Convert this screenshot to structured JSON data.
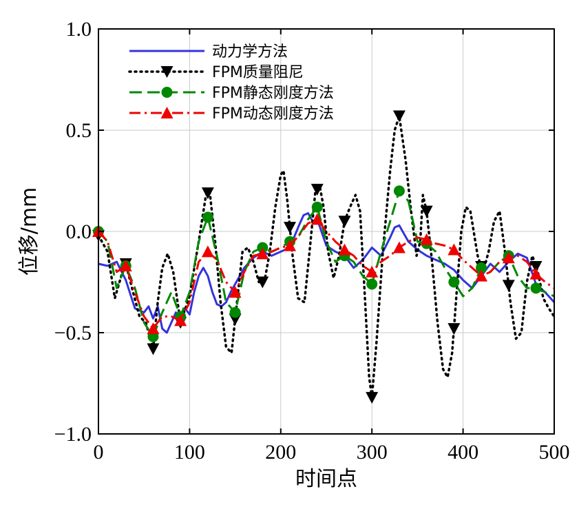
{
  "chart_data": {
    "type": "line",
    "xlabel": "时间点",
    "ylabel": "位移/mm",
    "xlim": [
      0,
      500
    ],
    "ylim": [
      -1.0,
      1.0
    ],
    "x_ticks": [
      0,
      100,
      200,
      300,
      400,
      500
    ],
    "x_tick_labels": [
      "0",
      "100",
      "200",
      "300",
      "400",
      "500"
    ],
    "y_ticks": [
      1.0,
      0.5,
      0.0,
      -0.5,
      -1.0
    ],
    "y_tick_labels": [
      "1.0",
      "0.5",
      "0.0",
      "−0.5",
      "−1.0"
    ],
    "grid": true,
    "legend_position": "top-left",
    "series": [
      {
        "name": "动力学方法",
        "color": "#3333dd",
        "style": "solid",
        "marker": "none",
        "x": [
          0,
          10,
          20,
          30,
          40,
          50,
          55,
          60,
          65,
          70,
          75,
          80,
          85,
          90,
          95,
          100,
          105,
          110,
          115,
          120,
          125,
          130,
          135,
          140,
          145,
          150,
          160,
          170,
          180,
          190,
          200,
          210,
          220,
          225,
          230,
          235,
          240,
          250,
          260,
          270,
          280,
          290,
          300,
          310,
          320,
          325,
          330,
          340,
          350,
          360,
          370,
          380,
          390,
          400,
          410,
          420,
          430,
          440,
          450,
          460,
          470,
          480,
          490,
          500
        ],
        "y": [
          -0.16,
          -0.17,
          -0.15,
          -0.24,
          -0.38,
          -0.4,
          -0.37,
          -0.43,
          -0.37,
          -0.48,
          -0.5,
          -0.45,
          -0.4,
          -0.45,
          -0.38,
          -0.41,
          -0.3,
          -0.22,
          -0.18,
          -0.22,
          -0.3,
          -0.36,
          -0.37,
          -0.35,
          -0.3,
          -0.26,
          -0.18,
          -0.13,
          -0.1,
          -0.12,
          -0.1,
          -0.08,
          0.03,
          0.08,
          0.09,
          0.05,
          0.06,
          -0.07,
          -0.1,
          -0.12,
          -0.18,
          -0.14,
          -0.08,
          -0.12,
          -0.03,
          0.02,
          0.03,
          -0.05,
          -0.09,
          -0.12,
          -0.14,
          -0.16,
          -0.19,
          -0.24,
          -0.28,
          -0.22,
          -0.16,
          -0.2,
          -0.15,
          -0.11,
          -0.13,
          -0.26,
          -0.3,
          -0.35
        ]
      },
      {
        "name": "FPM质量阻尼",
        "color": "#000000",
        "style": "dotted",
        "marker": "triangle-down",
        "marker_x": [
          0,
          30,
          60,
          90,
          120,
          150,
          180,
          210,
          240,
          270,
          300,
          330,
          360,
          390,
          420,
          450,
          480
        ],
        "x": [
          0,
          10,
          18,
          25,
          30,
          38,
          45,
          52,
          60,
          65,
          70,
          76,
          82,
          90,
          100,
          110,
          118,
          122,
          128,
          134,
          140,
          146,
          152,
          158,
          164,
          170,
          176,
          182,
          188,
          194,
          200,
          203,
          207,
          213,
          219,
          226,
          232,
          238,
          243,
          247,
          252,
          258,
          264,
          270,
          276,
          282,
          287,
          292,
          297,
          300,
          305,
          312,
          320,
          325,
          330,
          337,
          343,
          349,
          353,
          356,
          360,
          366,
          372,
          378,
          383,
          388,
          393,
          398,
          403,
          408,
          416,
          422,
          428,
          434,
          440,
          446,
          452,
          458,
          464,
          470,
          476,
          482,
          488,
          494,
          500
        ],
        "y": [
          -0.02,
          -0.1,
          -0.33,
          -0.22,
          -0.16,
          -0.3,
          -0.42,
          -0.45,
          -0.58,
          -0.35,
          -0.18,
          -0.11,
          -0.2,
          -0.45,
          -0.32,
          -0.05,
          0.18,
          0.2,
          -0.05,
          -0.35,
          -0.57,
          -0.6,
          -0.35,
          -0.1,
          -0.08,
          -0.15,
          -0.25,
          -0.25,
          -0.1,
          0.12,
          0.28,
          0.3,
          0.16,
          -0.12,
          -0.33,
          -0.35,
          -0.08,
          0.2,
          0.22,
          0.12,
          -0.1,
          -0.23,
          -0.12,
          0.05,
          0.12,
          0.18,
          0.1,
          -0.3,
          -0.72,
          -0.82,
          -0.55,
          -0.1,
          0.3,
          0.5,
          0.57,
          0.35,
          0.1,
          -0.12,
          -0.05,
          0.18,
          0.1,
          -0.15,
          -0.45,
          -0.68,
          -0.72,
          -0.6,
          -0.3,
          0.0,
          0.12,
          0.1,
          -0.12,
          -0.2,
          -0.1,
          0.05,
          0.1,
          -0.1,
          -0.35,
          -0.53,
          -0.5,
          -0.25,
          -0.12,
          -0.2,
          -0.33,
          -0.38,
          -0.42
        ]
      },
      {
        "name": "FPM静态刚度方法",
        "color": "#008800",
        "style": "dashed",
        "marker": "circle",
        "marker_x": [
          0,
          30,
          60,
          90,
          120,
          150,
          180,
          210,
          240,
          270,
          300,
          330,
          360,
          390,
          420,
          450,
          480
        ],
        "x": [
          0,
          10,
          20,
          30,
          40,
          50,
          60,
          70,
          80,
          90,
          100,
          110,
          120,
          130,
          140,
          150,
          160,
          170,
          180,
          190,
          200,
          210,
          220,
          230,
          240,
          250,
          260,
          270,
          280,
          290,
          300,
          310,
          320,
          330,
          340,
          350,
          360,
          370,
          380,
          390,
          400,
          410,
          420,
          430,
          440,
          450,
          460,
          470,
          480,
          490,
          500
        ],
        "y": [
          0.0,
          -0.05,
          -0.28,
          -0.17,
          -0.28,
          -0.45,
          -0.52,
          -0.4,
          -0.3,
          -0.42,
          -0.3,
          -0.05,
          0.07,
          -0.12,
          -0.35,
          -0.4,
          -0.2,
          -0.1,
          -0.08,
          -0.1,
          -0.08,
          -0.05,
          -0.02,
          0.06,
          0.12,
          -0.05,
          -0.15,
          -0.12,
          -0.15,
          -0.22,
          -0.26,
          -0.1,
          0.05,
          0.2,
          0.15,
          -0.05,
          -0.06,
          -0.1,
          -0.18,
          -0.25,
          -0.32,
          -0.28,
          -0.18,
          -0.2,
          -0.15,
          -0.12,
          -0.22,
          -0.28,
          -0.28,
          -0.3,
          -0.32
        ]
      },
      {
        "name": "FPM动态刚度方法",
        "color": "#ee0000",
        "style": "dashdot",
        "marker": "triangle-up",
        "marker_x": [
          0,
          30,
          60,
          90,
          120,
          150,
          180,
          210,
          240,
          270,
          300,
          330,
          360,
          390,
          420,
          450,
          480
        ],
        "x": [
          0,
          10,
          20,
          30,
          40,
          50,
          60,
          70,
          80,
          90,
          100,
          110,
          120,
          130,
          140,
          150,
          160,
          170,
          180,
          190,
          200,
          210,
          220,
          230,
          240,
          250,
          260,
          270,
          280,
          290,
          300,
          310,
          320,
          330,
          340,
          350,
          360,
          370,
          380,
          390,
          400,
          410,
          420,
          430,
          440,
          450,
          460,
          470,
          480,
          490,
          500
        ],
        "y": [
          0.0,
          -0.05,
          -0.2,
          -0.17,
          -0.3,
          -0.42,
          -0.48,
          -0.42,
          -0.42,
          -0.44,
          -0.35,
          -0.15,
          -0.1,
          -0.14,
          -0.25,
          -0.3,
          -0.2,
          -0.12,
          -0.11,
          -0.1,
          -0.08,
          -0.07,
          -0.02,
          0.04,
          0.06,
          0.0,
          -0.05,
          -0.09,
          -0.12,
          -0.17,
          -0.2,
          -0.15,
          -0.12,
          -0.08,
          -0.05,
          -0.03,
          -0.04,
          -0.06,
          -0.07,
          -0.09,
          -0.14,
          -0.18,
          -0.22,
          -0.2,
          -0.15,
          -0.13,
          -0.12,
          -0.15,
          -0.21,
          -0.25,
          -0.28
        ]
      }
    ]
  }
}
